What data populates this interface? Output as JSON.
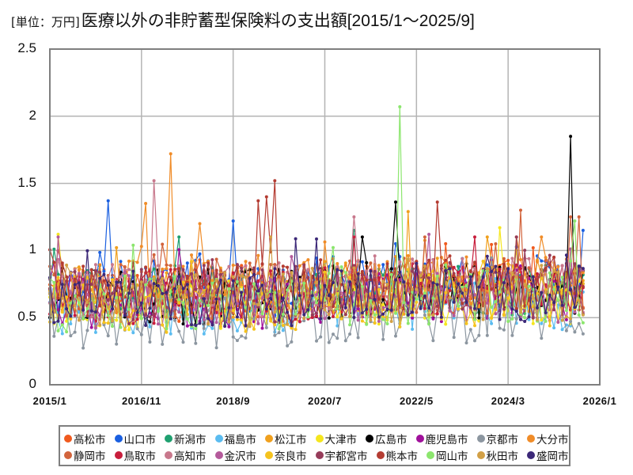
{
  "title": {
    "unit": "[単位：万円]",
    "main": "医療以外の非貯蓄型保険料の支出額",
    "range": "[2015/1～2025/9]"
  },
  "chart_data": {
    "type": "line",
    "title": "[単位：万円]医療以外の非貯蓄型保険料の支出額[2015/1～2025/9]",
    "xlabel": "",
    "ylabel": "",
    "unit": "万円",
    "x_range": [
      "2015/1",
      "2026/1"
    ],
    "data_range": [
      "2015/1",
      "2025/9"
    ],
    "x_points": 129,
    "ylim": [
      0,
      2.5
    ],
    "yticks": [
      0,
      0.5,
      1,
      1.5,
      2,
      2.5
    ],
    "ytick_labels": [
      "0",
      "0.5",
      "1",
      "1.5",
      "2",
      "2.5"
    ],
    "xtick_labels": [
      "2015/1",
      "2016/11",
      "2018/9",
      "2020/7",
      "2022/5",
      "2024/3",
      "2026/1"
    ],
    "grid": true,
    "legend_position": "bottom",
    "markers": true,
    "series": [
      {
        "name": "高松市",
        "color": "#f05a1e",
        "base": 0.68,
        "peaks": [
          [
            95,
            1.05
          ]
        ]
      },
      {
        "name": "山口市",
        "color": "#1a5fe0",
        "base": 0.72,
        "peaks": [
          [
            14,
            1.37
          ],
          [
            44,
            1.22
          ],
          [
            83,
            1.05
          ],
          [
            128,
            1.15
          ]
        ]
      },
      {
        "name": "新潟市",
        "color": "#1fa070",
        "base": 0.68,
        "peaks": [
          [
            1,
            1.01
          ],
          [
            73,
            1.15
          ]
        ]
      },
      {
        "name": "福島市",
        "color": "#5bbcf0",
        "base": 0.58,
        "peaks": []
      },
      {
        "name": "松江市",
        "color": "#f0a01e",
        "base": 0.68,
        "peaks": [
          [
            86,
            1.29
          ]
        ]
      },
      {
        "name": "大津市",
        "color": "#f5e61e",
        "base": 0.62,
        "peaks": [
          [
            2,
            1.12
          ],
          [
            108,
            1.17
          ]
        ]
      },
      {
        "name": "広島市",
        "color": "#000000",
        "base": 0.66,
        "peaks": [
          [
            83,
            1.36
          ],
          [
            125,
            1.85
          ]
        ]
      },
      {
        "name": "鹿児島市",
        "color": "#a0109b",
        "base": 0.63,
        "peaks": []
      },
      {
        "name": "京都市",
        "color": "#8c96a0",
        "base": 0.48,
        "peaks": []
      },
      {
        "name": "大分市",
        "color": "#f08c28",
        "base": 0.72,
        "peaks": [
          [
            23,
            1.35
          ],
          [
            29,
            1.72
          ],
          [
            36,
            1.2
          ]
        ]
      },
      {
        "name": "静岡市",
        "color": "#d2643c",
        "base": 0.7,
        "peaks": [
          [
            113,
            1.3
          ],
          [
            127,
            1.25
          ],
          [
            125,
            1.25
          ]
        ]
      },
      {
        "name": "鳥取市",
        "color": "#c81e3c",
        "base": 0.66,
        "peaks": [
          [
            102,
            1.1
          ]
        ]
      },
      {
        "name": "高知市",
        "color": "#c8788c",
        "base": 0.7,
        "peaks": [
          [
            25,
            1.52
          ],
          [
            73,
            1.25
          ]
        ]
      },
      {
        "name": "金沢市",
        "color": "#b45a9b",
        "base": 0.63,
        "peaks": [
          [
            91,
            1.12
          ]
        ]
      },
      {
        "name": "奈良市",
        "color": "#f5c31e",
        "base": 0.6,
        "peaks": []
      },
      {
        "name": "宇都宮市",
        "color": "#963c5a",
        "base": 0.66,
        "peaks": []
      },
      {
        "name": "熊本市",
        "color": "#b43c32",
        "base": 0.72,
        "peaks": [
          [
            50,
            1.37
          ],
          [
            52,
            1.4
          ],
          [
            54,
            1.52
          ],
          [
            93,
            1.36
          ]
        ]
      },
      {
        "name": "岡山市",
        "color": "#8ce66e",
        "base": 0.6,
        "peaks": [
          [
            84,
            2.07
          ],
          [
            126,
            1.22
          ]
        ]
      },
      {
        "name": "秋田市",
        "color": "#d2a046",
        "base": 0.64,
        "peaks": []
      },
      {
        "name": "盛岡市",
        "color": "#3c2878",
        "base": 0.64,
        "peaks": []
      }
    ]
  },
  "legend": {
    "rows": [
      [
        0,
        1,
        2,
        3,
        4,
        5,
        6,
        7,
        8,
        9
      ],
      [
        10,
        11,
        12,
        13,
        14,
        15,
        16,
        17,
        18,
        19
      ]
    ]
  }
}
